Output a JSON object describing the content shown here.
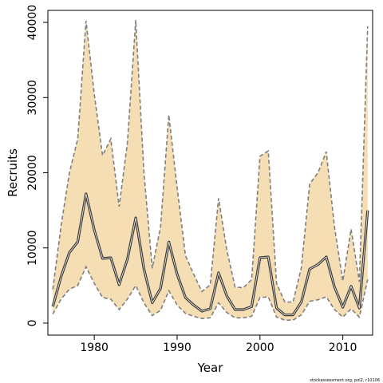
{
  "chart_data": {
    "type": "line",
    "title": "",
    "xlabel": "Year",
    "ylabel": "Recruits",
    "xlim": [
      1974.4,
      2013.6
    ],
    "ylim": [
      -1600,
      41600
    ],
    "xticks": [
      1980,
      1990,
      2000,
      2010
    ],
    "yticks": [
      0,
      10000,
      20000,
      30000,
      40000
    ],
    "footnote": "stockassessment.org, pol2, r10106",
    "colors": {
      "band": "#f5deb3",
      "bounds": "#7f7f7f",
      "estimate": "#3a3a3a",
      "frame": "#000000"
    },
    "x": [
      1975,
      1976,
      1977,
      1978,
      1979,
      1980,
      1981,
      1982,
      1983,
      1984,
      1985,
      1986,
      1987,
      1988,
      1989,
      1990,
      1991,
      1992,
      1993,
      1994,
      1995,
      1996,
      1997,
      1998,
      1999,
      2000,
      2001,
      2002,
      2003,
      2004,
      2005,
      2006,
      2007,
      2008,
      2009,
      2010,
      2011,
      2012,
      2013
    ],
    "series": [
      {
        "role": "estimate",
        "values": [
          2200,
          6200,
          9400,
          10800,
          17200,
          12400,
          8600,
          8700,
          5100,
          8500,
          14000,
          7200,
          2700,
          4600,
          10800,
          6500,
          3400,
          2400,
          1600,
          1900,
          6700,
          3600,
          1800,
          1800,
          2200,
          8700,
          8800,
          2000,
          1100,
          1100,
          2800,
          7200,
          7800,
          8800,
          4800,
          2100,
          4900,
          2000,
          15000
        ]
      },
      {
        "role": "upper",
        "values": [
          4500,
          13000,
          20000,
          24500,
          40200,
          30500,
          22300,
          24500,
          15500,
          24000,
          40300,
          20000,
          7300,
          12800,
          27700,
          18000,
          9000,
          6500,
          4200,
          5100,
          16600,
          9700,
          4800,
          4700,
          5800,
          22200,
          22900,
          5300,
          2800,
          2800,
          7400,
          18500,
          20000,
          22800,
          12800,
          5600,
          12500,
          5500,
          39500
        ]
      },
      {
        "role": "lower",
        "values": [
          1200,
          3200,
          4500,
          5000,
          7500,
          5300,
          3400,
          3200,
          1800,
          3200,
          5000,
          2700,
          1000,
          1700,
          4300,
          2400,
          1300,
          900,
          600,
          700,
          2700,
          1400,
          700,
          700,
          900,
          3400,
          3500,
          800,
          400,
          400,
          1100,
          2900,
          3100,
          3500,
          1800,
          800,
          1900,
          800,
          5800
        ]
      }
    ]
  }
}
